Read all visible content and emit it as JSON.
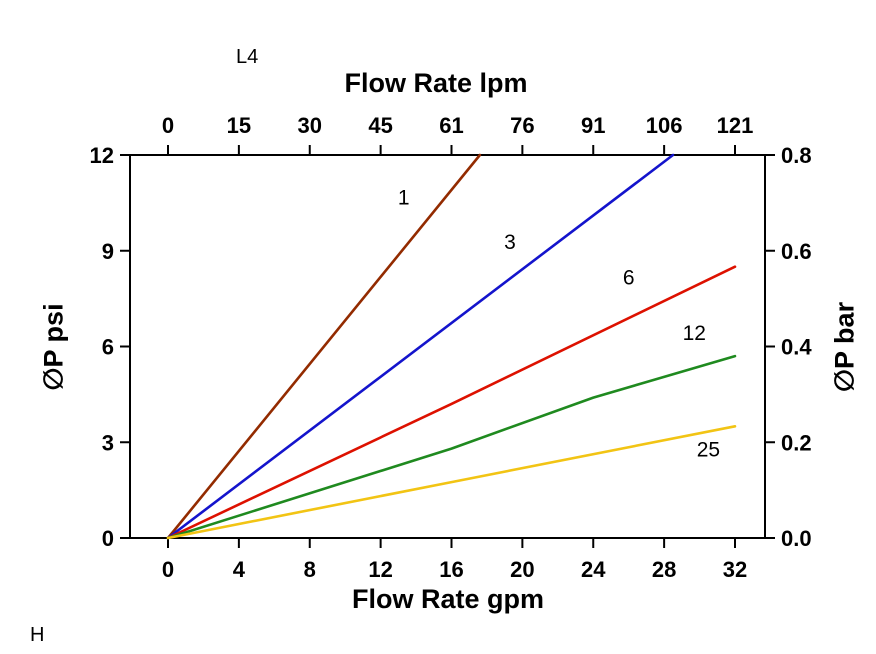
{
  "annotations": {
    "top_left": "L4",
    "bottom_left": "H"
  },
  "chart_data": {
    "type": "line",
    "top_axis_title": "Flow Rate lpm",
    "bottom_axis_title": "Flow Rate gpm",
    "left_axis_title": "∅P psi",
    "right_axis_title": "∅P bar",
    "x_bottom_ticks": [
      "0",
      "4",
      "8",
      "12",
      "16",
      "20",
      "24",
      "28",
      "32"
    ],
    "x_top_ticks": [
      "0",
      "15",
      "30",
      "45",
      "61",
      "76",
      "91",
      "106",
      "121"
    ],
    "y_left_ticks": [
      "0",
      "3",
      "6",
      "9",
      "12"
    ],
    "y_right_ticks": [
      "0.0",
      "0.2",
      "0.4",
      "0.6",
      "0.8"
    ],
    "xlim": [
      0,
      32
    ],
    "ylim": [
      0,
      12
    ],
    "grid": false,
    "legend": "inline-curve-labels",
    "series": [
      {
        "name": "1",
        "color": "#932B00",
        "points": [
          [
            0,
            0
          ],
          [
            17.6,
            12
          ]
        ],
        "label_pos": [
          13.3,
          10.45
        ]
      },
      {
        "name": "3",
        "color": "#1414CC",
        "points": [
          [
            0,
            0
          ],
          [
            28.5,
            12
          ]
        ],
        "label_pos": [
          19.3,
          9.05
        ]
      },
      {
        "name": "6",
        "color": "#DD1100",
        "points": [
          [
            0,
            0
          ],
          [
            16,
            4.2
          ],
          [
            32,
            8.5
          ]
        ],
        "label_pos": [
          26.0,
          7.95
        ]
      },
      {
        "name": "12",
        "color": "#1F8A1F",
        "points": [
          [
            0,
            0
          ],
          [
            16,
            2.8
          ],
          [
            24,
            4.4
          ],
          [
            32,
            5.7
          ]
        ],
        "label_pos": [
          29.7,
          6.2
        ]
      },
      {
        "name": "25",
        "color": "#F2C414",
        "points": [
          [
            0,
            0
          ],
          [
            16,
            1.75
          ],
          [
            32,
            3.5
          ]
        ],
        "label_pos": [
          30.5,
          2.55
        ]
      }
    ]
  }
}
